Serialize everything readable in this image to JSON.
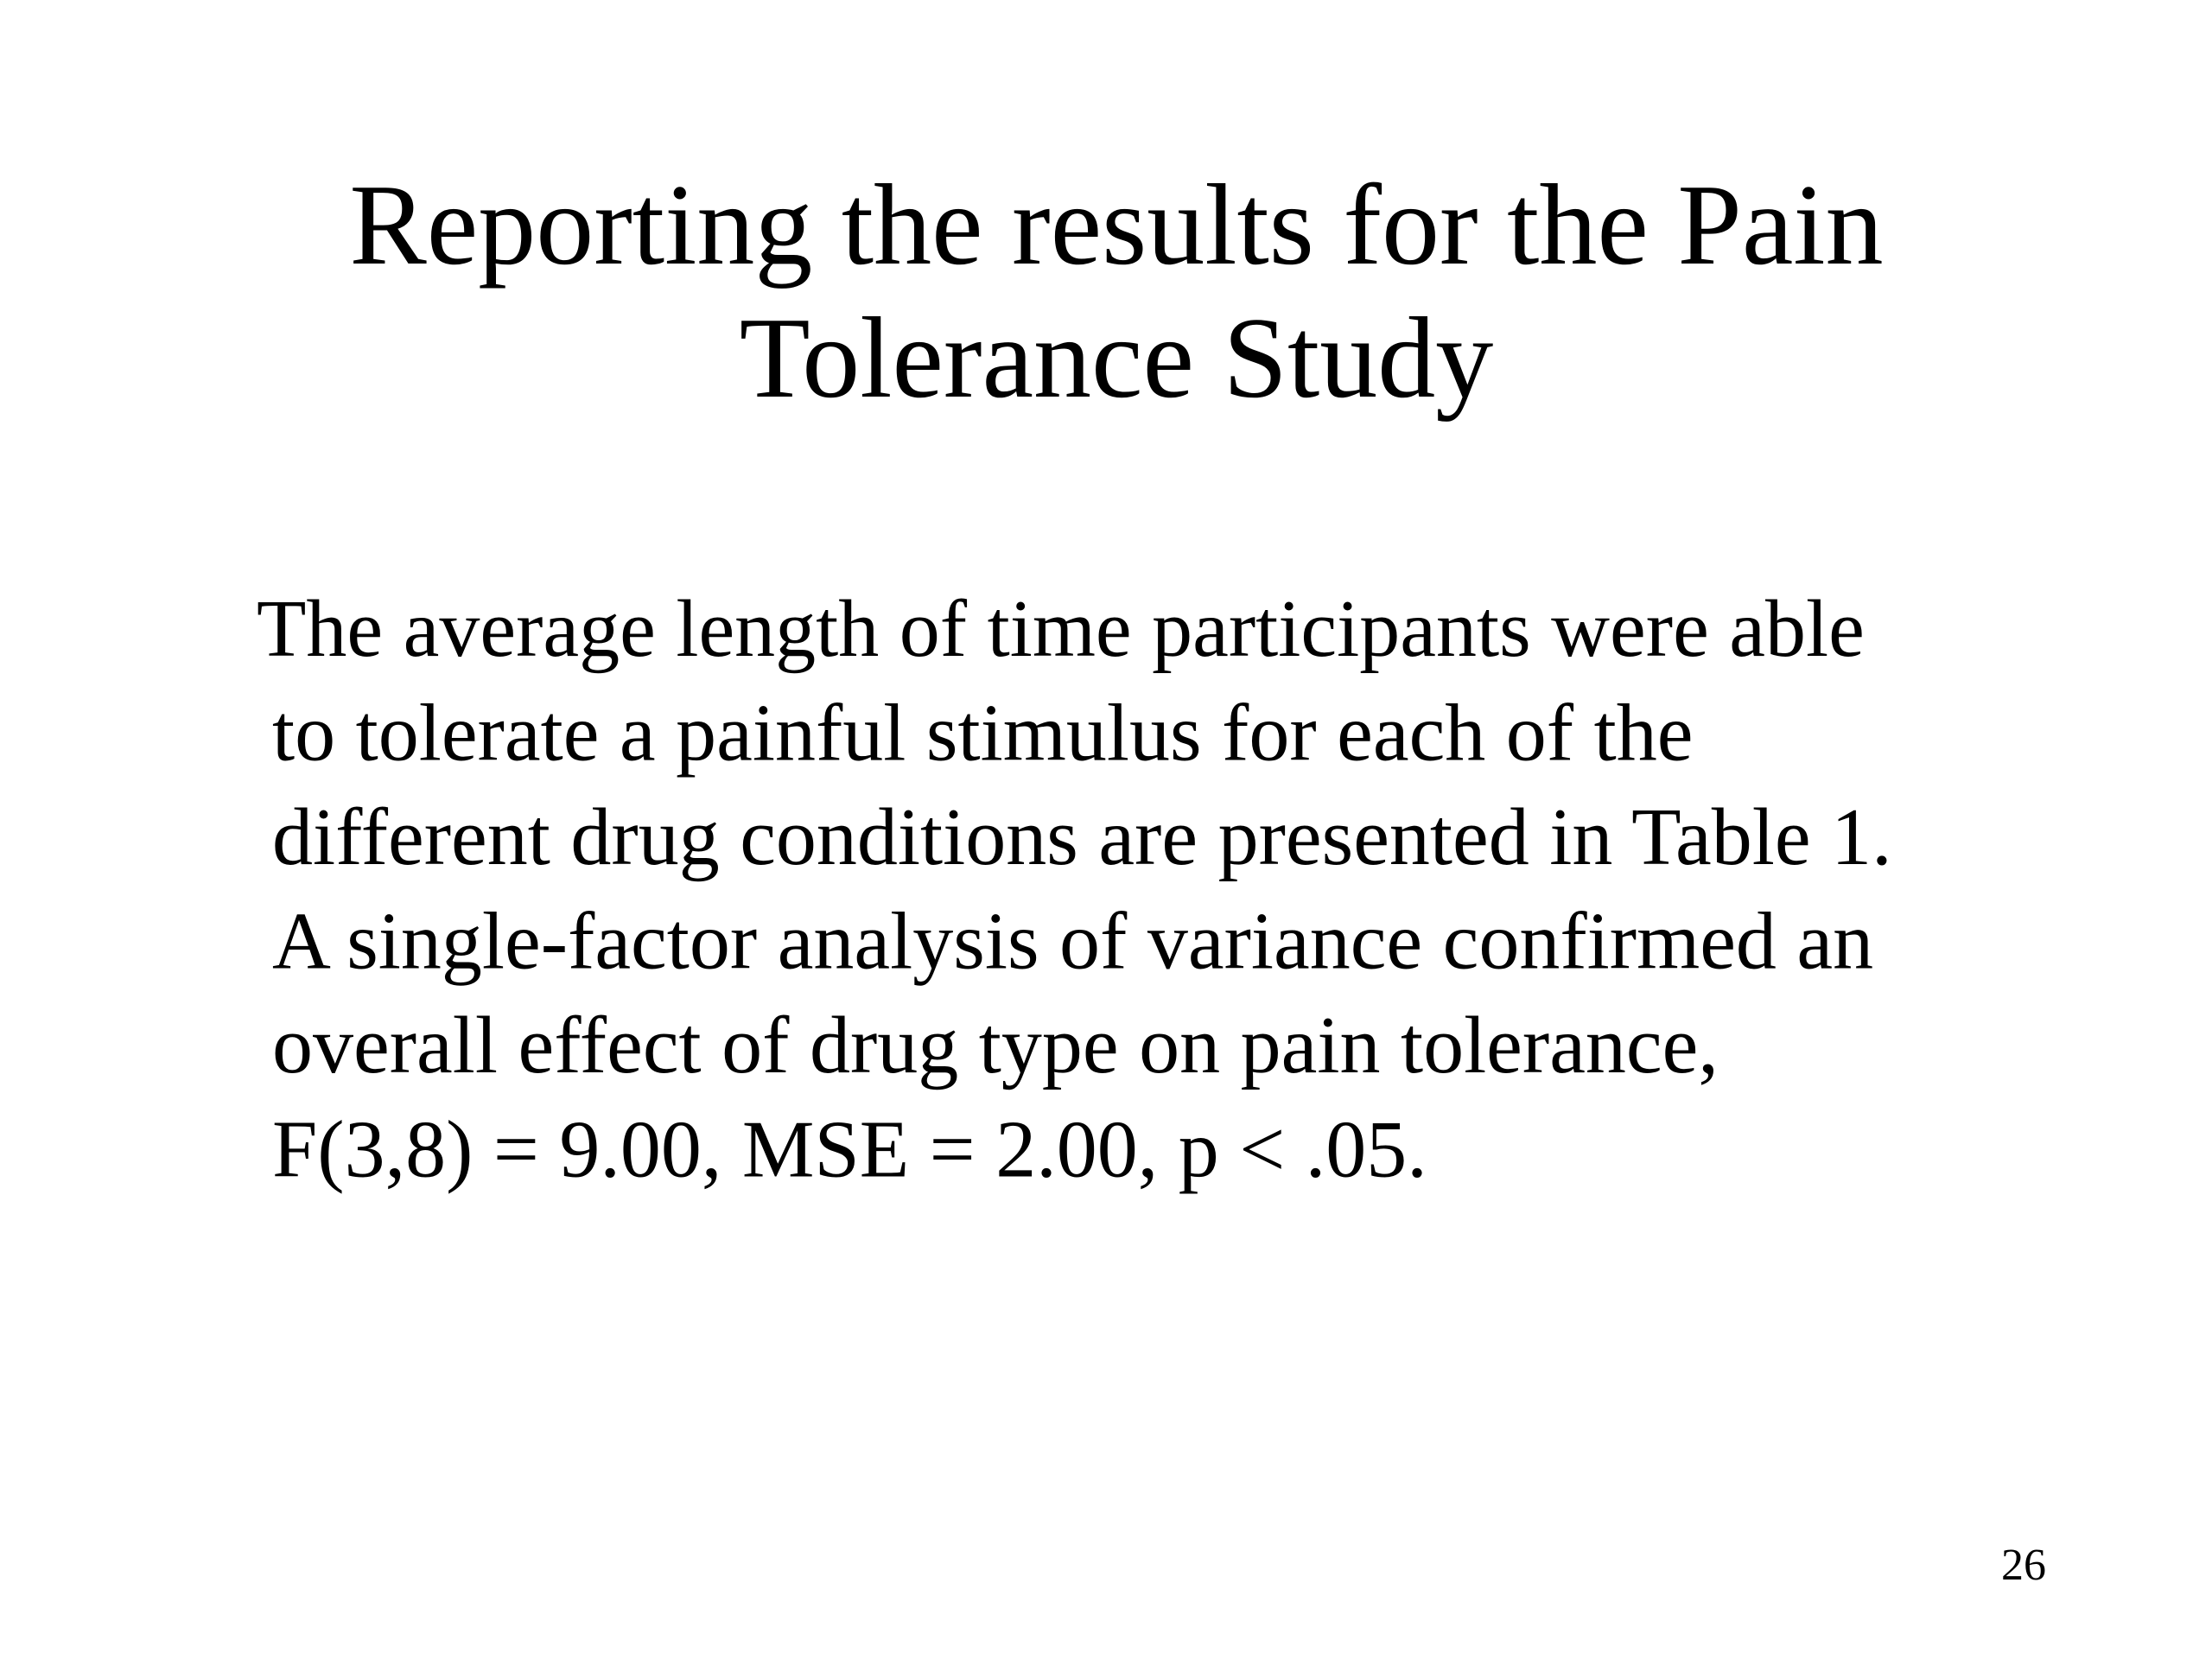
{
  "slide": {
    "title": [
      "Reporting the results for the Pain",
      "Tolerance Study"
    ],
    "body": [
      "The average length of time participants were able",
      "to tolerate a painful stimulus for each of the",
      "different drug conditions are presented in Table 1.",
      "A single-factor analysis of variance confirmed an",
      "overall effect of drug type on pain tolerance,",
      "F(3,8) = 9.00, MSE = 2.00, p < .05."
    ],
    "page_number": "26"
  }
}
